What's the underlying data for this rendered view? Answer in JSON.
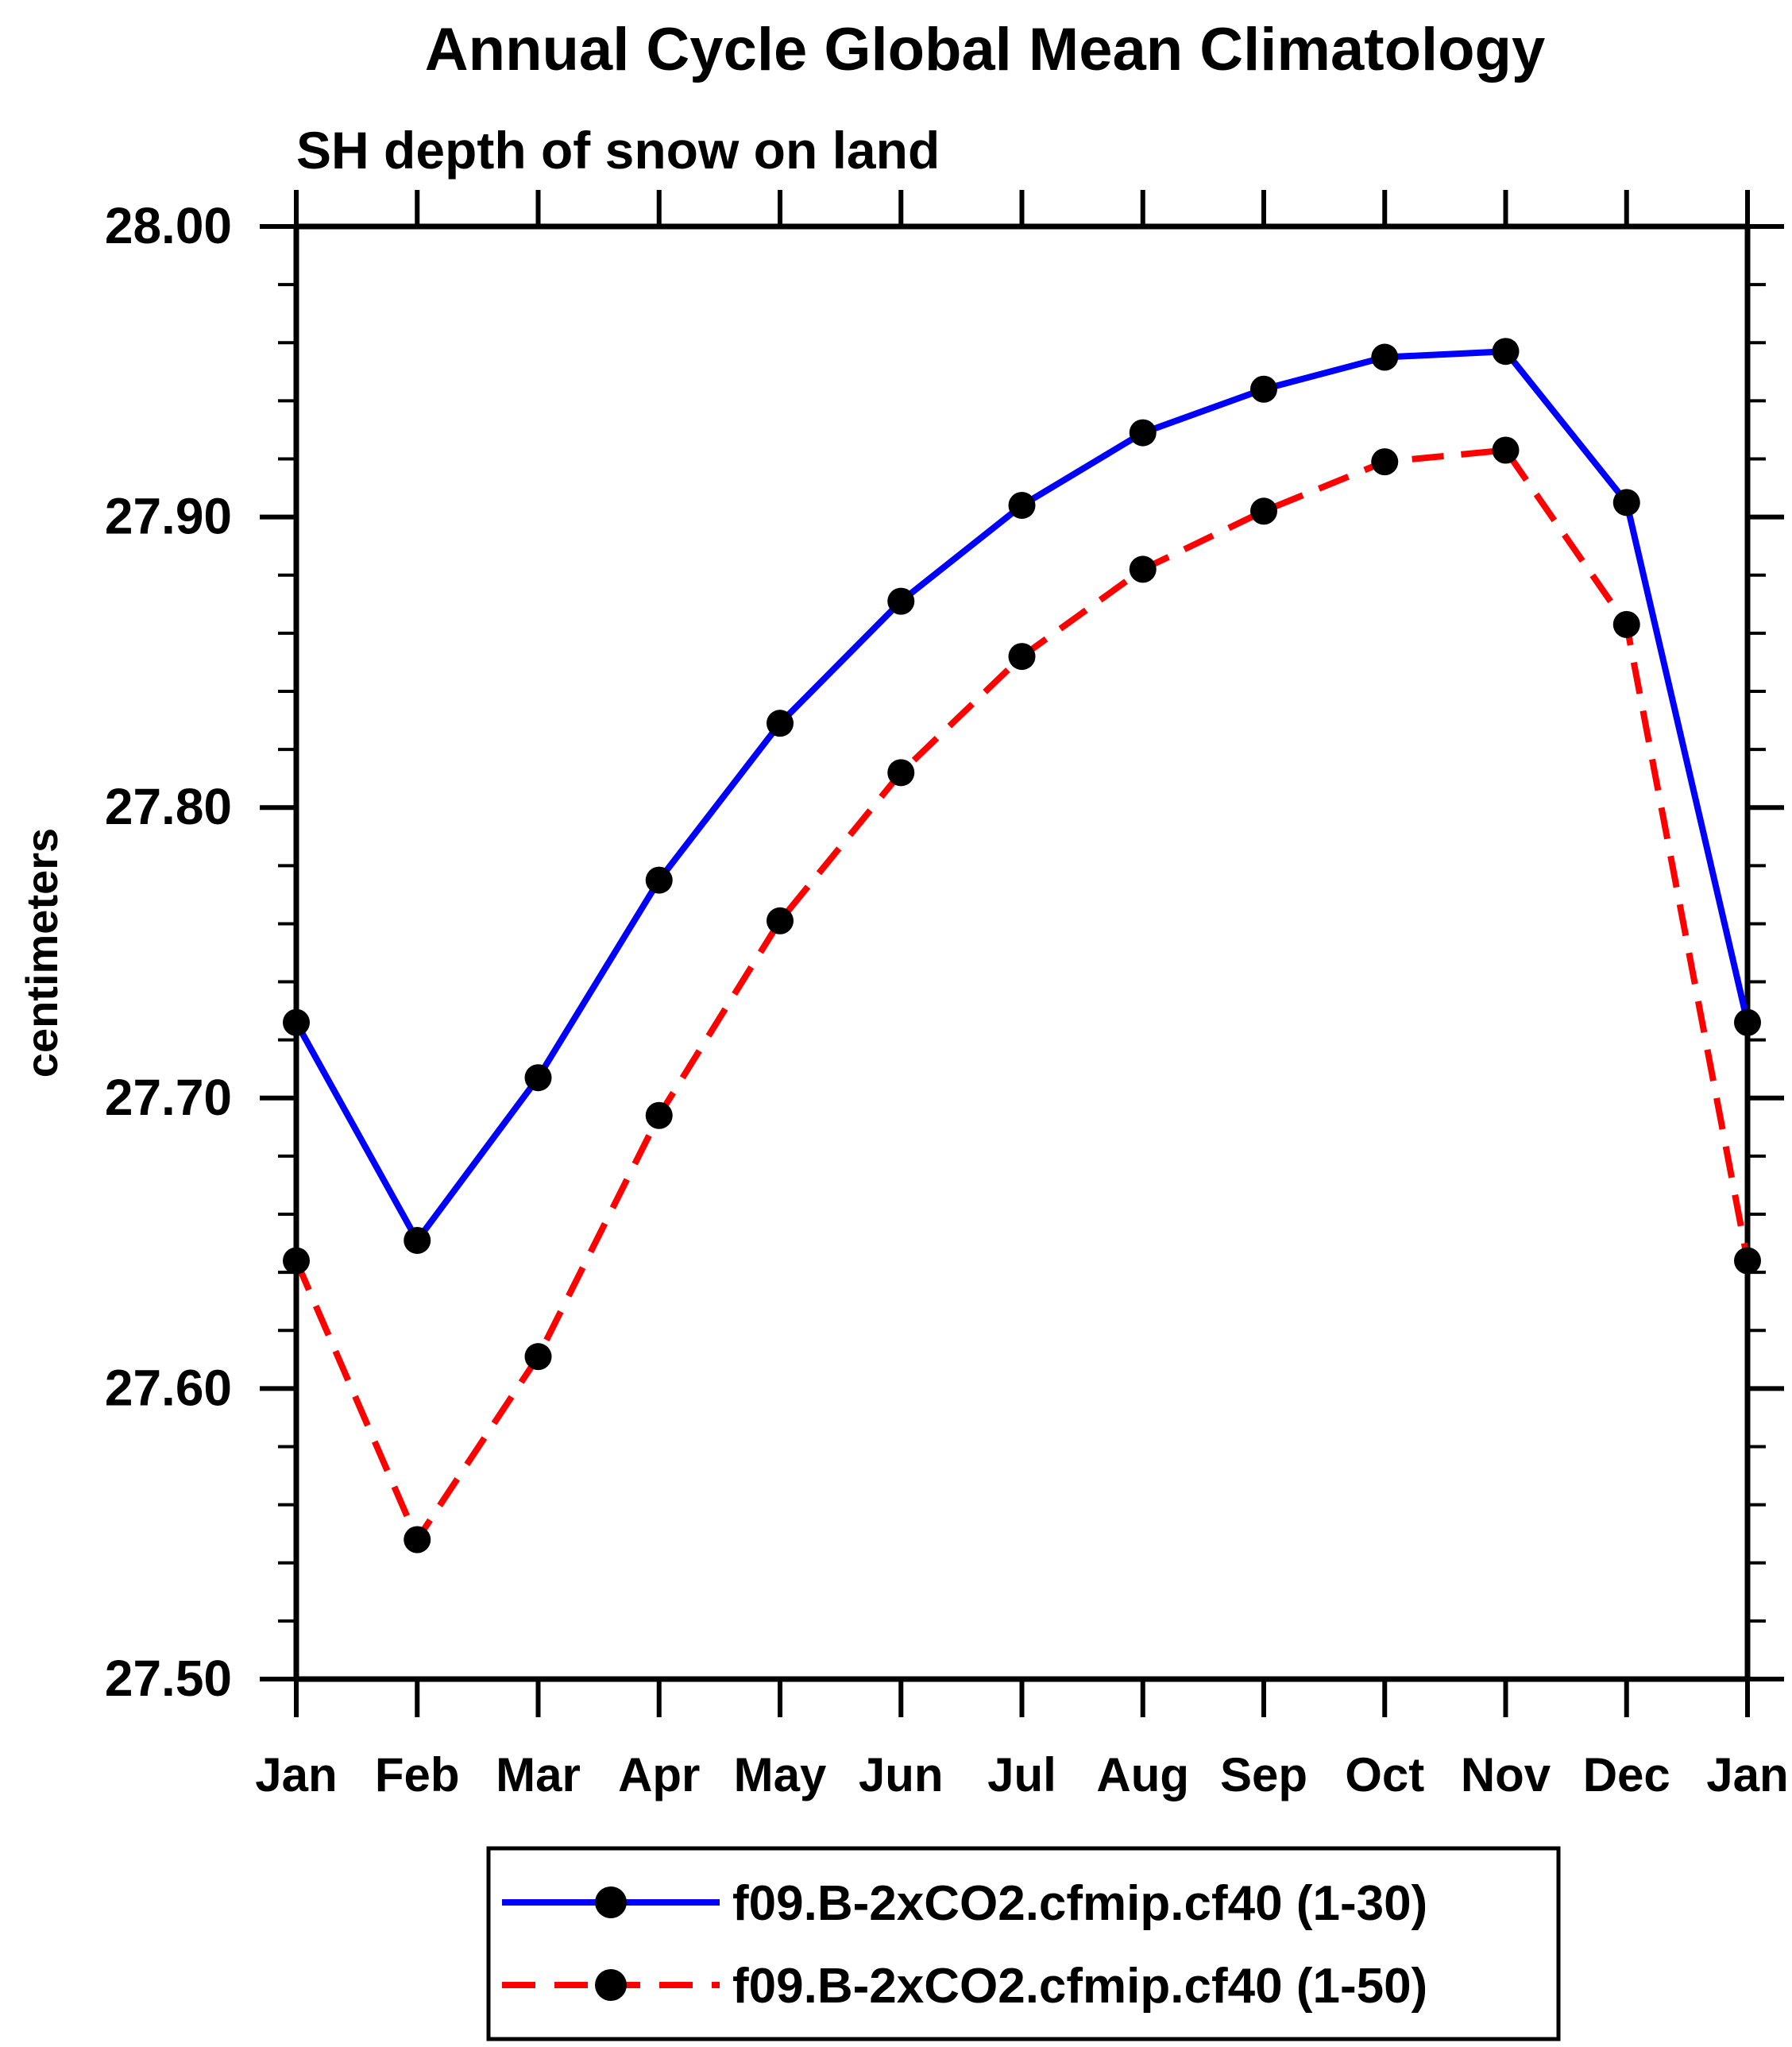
{
  "header": {
    "title": "Annual Cycle Global Mean Climatology",
    "subtitle": "SH depth of snow on land"
  },
  "axes": {
    "y_label": "centimeters",
    "y_tick_labels": [
      "28.00",
      "27.90",
      "27.80",
      "27.70",
      "27.60",
      "27.50"
    ],
    "x_tick_labels": [
      "Jan",
      "Feb",
      "Mar",
      "Apr",
      "May",
      "Jun",
      "Jul",
      "Aug",
      "Sep",
      "Oct",
      "Nov",
      "Dec",
      "Jan"
    ]
  },
  "chart_data": {
    "type": "line",
    "title": "Annual Cycle Global Mean Climatology",
    "subtitle": "SH depth of snow on land",
    "ylabel": "centimeters",
    "xlabel": "",
    "ylim": [
      27.5,
      28.0
    ],
    "y_major_step": 0.1,
    "y_minor_step": 0.02,
    "grid": false,
    "legend_position": "bottom-center",
    "categories": [
      "Jan",
      "Feb",
      "Mar",
      "Apr",
      "May",
      "Jun",
      "Jul",
      "Aug",
      "Sep",
      "Oct",
      "Nov",
      "Dec",
      "Jan"
    ],
    "series": [
      {
        "name": "f09.B-2xCO2.cfmip.cf40 (1-30)",
        "color": "#0000FF",
        "line_style": "solid",
        "marker": "filled-black-circle",
        "values": [
          27.726,
          27.651,
          27.707,
          27.775,
          27.829,
          27.871,
          27.904,
          27.929,
          27.944,
          27.955,
          27.957,
          27.905,
          27.726
        ]
      },
      {
        "name": "f09.B-2xCO2.cfmip.cf40 (1-50)",
        "color": "#FF0000",
        "line_style": "dashed",
        "marker": "filled-black-circle",
        "values": [
          27.644,
          27.548,
          27.611,
          27.694,
          27.761,
          27.812,
          27.852,
          27.882,
          27.902,
          27.919,
          27.923,
          27.863,
          27.644
        ]
      }
    ]
  },
  "legend": {
    "entries": [
      {
        "label": "f09.B-2xCO2.cfmip.cf40 (1-30)",
        "color": "#0000FF",
        "style": "solid"
      },
      {
        "label": "f09.B-2xCO2.cfmip.cf40 (1-50)",
        "color": "#FF0000",
        "style": "dashed"
      }
    ]
  },
  "colors": {
    "series_1": "#0000FF",
    "series_2": "#FF0000",
    "marker": "#000000",
    "axis": "#000000",
    "background": "#FFFFFF"
  }
}
